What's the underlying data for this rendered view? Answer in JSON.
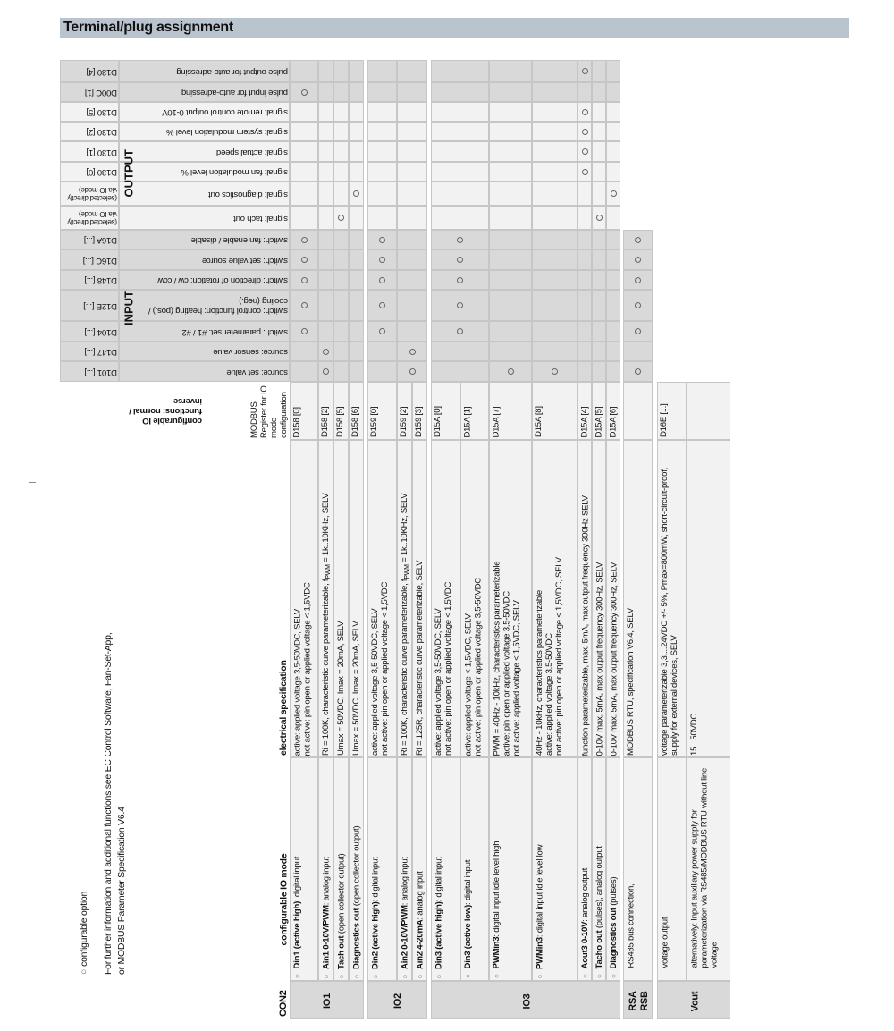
{
  "title": "Terminal/plug assignment",
  "colors": {
    "title_bar": "#b9c4ce",
    "dark_row": "#d9d9d9",
    "light_row": "#f2f2f2",
    "grid": "#c6c6c6",
    "option_mark": "#666666"
  },
  "section_labels": {
    "output": "OUTPUT",
    "input": "INPUT"
  },
  "output_rows": [
    {
      "register": "D130 [4]",
      "label": [
        "pulse output for auto-adressing"
      ],
      "marks": [
        "aout3"
      ]
    },
    {
      "register": "D00C [1]",
      "label": [
        "pulse input for auto-adressing"
      ],
      "marks": [
        "din1"
      ]
    },
    {
      "register": "D130 [5]",
      "label": [
        "signal: remote control output 0-10V"
      ],
      "marks": [
        "aout3"
      ]
    },
    {
      "register": "D130 [2]",
      "label": [
        "signal: system modulation level %"
      ],
      "marks": [
        "aout3"
      ]
    },
    {
      "register": "D130 [1]",
      "label": [
        "signal: actual speed"
      ],
      "marks": [
        "aout3"
      ]
    },
    {
      "register": "D130 [0]",
      "label": [
        "signal: fan modulation level %"
      ],
      "marks": [
        "aout3"
      ]
    },
    {
      "register_lines": [
        "(selected directly",
        "via IO mode)"
      ],
      "label": [
        "signal: diagnostics out"
      ],
      "marks": [
        "diag1",
        "diag3"
      ]
    },
    {
      "register_lines": [
        "(selected directly",
        "via IO mode)"
      ],
      "label": [
        "signal: tach out"
      ],
      "marks": [
        "tach1",
        "tacho3"
      ]
    }
  ],
  "input_rows": [
    {
      "register": "D16A [...]",
      "label": [
        "switch: fan enable / disable"
      ],
      "marks": [
        "din1",
        "din2",
        "din3",
        "rs"
      ]
    },
    {
      "register": "D16C [...]",
      "label": [
        "switch: set value source"
      ],
      "marks": [
        "din1",
        "din2",
        "din3",
        "rs"
      ]
    },
    {
      "register": "D148 [...]",
      "label": [
        "switch: direction of rotation: cw / ccw"
      ],
      "marks": [
        "din1",
        "din2",
        "din3",
        "rs"
      ]
    },
    {
      "register": "D12E [...]",
      "label": [
        "switch: control function: heating (pos.) /",
        "cooling (neg.)"
      ],
      "marks": [
        "din1",
        "din2",
        "din3",
        "rs"
      ]
    },
    {
      "register": "D104 [...]",
      "label": [
        "switch: parameter set: #1 / #2"
      ],
      "marks": [
        "din1",
        "din2",
        "din3",
        "rs"
      ]
    },
    {
      "register": "D147 [...]",
      "label": [
        "source: sensor value"
      ],
      "marks": [
        "ain1",
        "ain2"
      ]
    },
    {
      "register": "D101 [...]",
      "label": [
        "source: set value"
      ],
      "marks": [
        "ain1",
        "ain2",
        "pwmh",
        "pwml",
        "rs"
      ]
    }
  ],
  "functions_header": [
    "configurable IO",
    "functions: normal /",
    "inverse"
  ],
  "table_headers": {
    "connector": "CON2",
    "mode": "configurable IO mode",
    "spec": "electrical specification",
    "register": [
      "MODBUS",
      "Register for IO",
      "mode",
      "configuration"
    ]
  },
  "groups": [
    "IO1",
    "IO2",
    "IO3",
    [
      "RSA",
      "RSB"
    ],
    "Vout"
  ],
  "io_modes": [
    {
      "bullet": true,
      "mode_bold": "Din1 (active high)",
      "mode_rest": ": digital input",
      "spec": [
        "active: applied voltage 3,5-50VDC, SELV",
        "not active: pin open or applied voltage < 1,5VDC"
      ],
      "register": "D158 [0]"
    },
    {
      "bullet": true,
      "mode_bold": "Ain1 0-10V/PWM",
      "mode_rest": ": analog input",
      "spec": [
        {
          "pre": "Ri = 100K, characteristic curve parameterizable, f",
          "sub": "PWM",
          "post": " = 1k..10KHz, SELV"
        }
      ],
      "register": "D158 [2]"
    },
    {
      "bullet": true,
      "mode_bold": "Tach out",
      "mode_rest": " (open collector output)",
      "spec": [
        "Umax = 50VDC, Imax = 20mA, SELV"
      ],
      "register": "D158 [5]"
    },
    {
      "bullet": true,
      "mode_bold": "Diagnostics out",
      "mode_rest": " (open collector output)",
      "spec": [
        "Umax = 50VDC, Imax = 20mA, SELV"
      ],
      "register": "D158 [6]"
    },
    {
      "bullet": true,
      "mode_bold": "Din2 (active high)",
      "mode_rest": ": digital input",
      "spec": [
        "active: applied voltage 3,5-50VDC, SELV",
        "not active: pin open or applied voltage < 1,5VDC"
      ],
      "register": "D159 [0]"
    },
    {
      "bullet": true,
      "mode_bold": "Ain2 0-10V/PWM",
      "mode_rest": ": analog input",
      "spec": [
        {
          "pre": "Ri = 100K, characteristic curve parameterizable, f",
          "sub": "PWM",
          "post": " = 1k..10KHz, SELV"
        }
      ],
      "register": "D159 [2]"
    },
    {
      "bullet": true,
      "mode_bold": "Ain2 4-20mA",
      "mode_rest": ": analog input",
      "spec": [
        "Ri = 125R, characteristic curve parameterizable, SELV"
      ],
      "register": "D159 [3]"
    },
    {
      "bullet": true,
      "mode_bold": "Din3 (active high)",
      "mode_rest": ": digital input",
      "spec": [
        "active: applied voltage 3,5-50VDC, SELV",
        "not active: pin open or applied voltage < 1,5VDC"
      ],
      "register": "D15A [0]"
    },
    {
      "bullet": true,
      "mode_bold": "Din3 (active low)",
      "mode_rest": ": digital input",
      "spec": [
        "active: applied voltage < 1,5VDC, SELV",
        "not active: pin open or applied voltage 3,5-50VDC"
      ],
      "register": "D15A [1]"
    },
    {
      "bullet": true,
      "mode_bold": "PWMin3",
      "mode_rest": ": digital input idle level high",
      "spec": [
        "PWM = 40Hz - 10kHz, characteristics parameterizable",
        "active: pin open or applied voltage 3,5-50VDC",
        "not active: applied voltage < 1,5VDC, SELV"
      ],
      "register": "D15A [7]"
    },
    {
      "bullet": true,
      "mode_bold": "PWMin3",
      "mode_rest": ": digital input idle level low",
      "spec": [
        "40Hz - 10kHz, characteristics parameterizable",
        "active: applied voltage 3,5-50VDC",
        "not active: pin open or applied voltage < 1,5VDC, SELV"
      ],
      "register": "D15A [8]"
    },
    {
      "bullet": true,
      "mode_bold": "Aout3 0-10V",
      "mode_rest": ": analog output",
      "spec": [
        "function parameterizable, max. 5mA, max output frequency 300Hz SELV"
      ],
      "register": "D15A [4]"
    },
    {
      "bullet": true,
      "mode_bold": "Tacho out",
      "mode_rest": " (pulses), analog output",
      "spec": [
        "0-10V max. 5mA, max output frequency 300Hz, SELV"
      ],
      "register": "D15A [5]"
    },
    {
      "bullet": true,
      "mode_bold": "Diagnostics out",
      "mode_rest": " (pulses)",
      "spec": [
        "0-10V max. 5mA, max output frequency 300Hz, SELV"
      ],
      "register": "D15A [6]"
    },
    {
      "bullet": false,
      "mode_bold": "",
      "mode_rest": "RS485 bus connection,",
      "spec": [
        "MODBUS RTU, specification V6.4, SELV"
      ],
      "register": ""
    },
    {
      "bullet": false,
      "mode_bold": "",
      "mode_rest": "voltage output",
      "spec": [
        "voltage parameterizable 3,3....24VDC +/- 5%, Pmax=800mW,  short-circuit-proof,",
        "supply for external devices, SELV"
      ],
      "register": "D16E [...]"
    },
    {
      "bullet": false,
      "mode_bold": "",
      "mode_lines": [
        "alternatively:  Input auxillary power supply for",
        "parameterization via RS485/MODBUS RTU without line",
        "voltage"
      ],
      "spec": [
        "15...50VDC"
      ],
      "register": ""
    }
  ],
  "legend": {
    "symbol": "○",
    "text": "configurable  option"
  },
  "footnote": [
    "For further information and additional functions see EC Control Software, Fan-Set-App,",
    "or MODBUS Parameter Specification V6.4"
  ]
}
